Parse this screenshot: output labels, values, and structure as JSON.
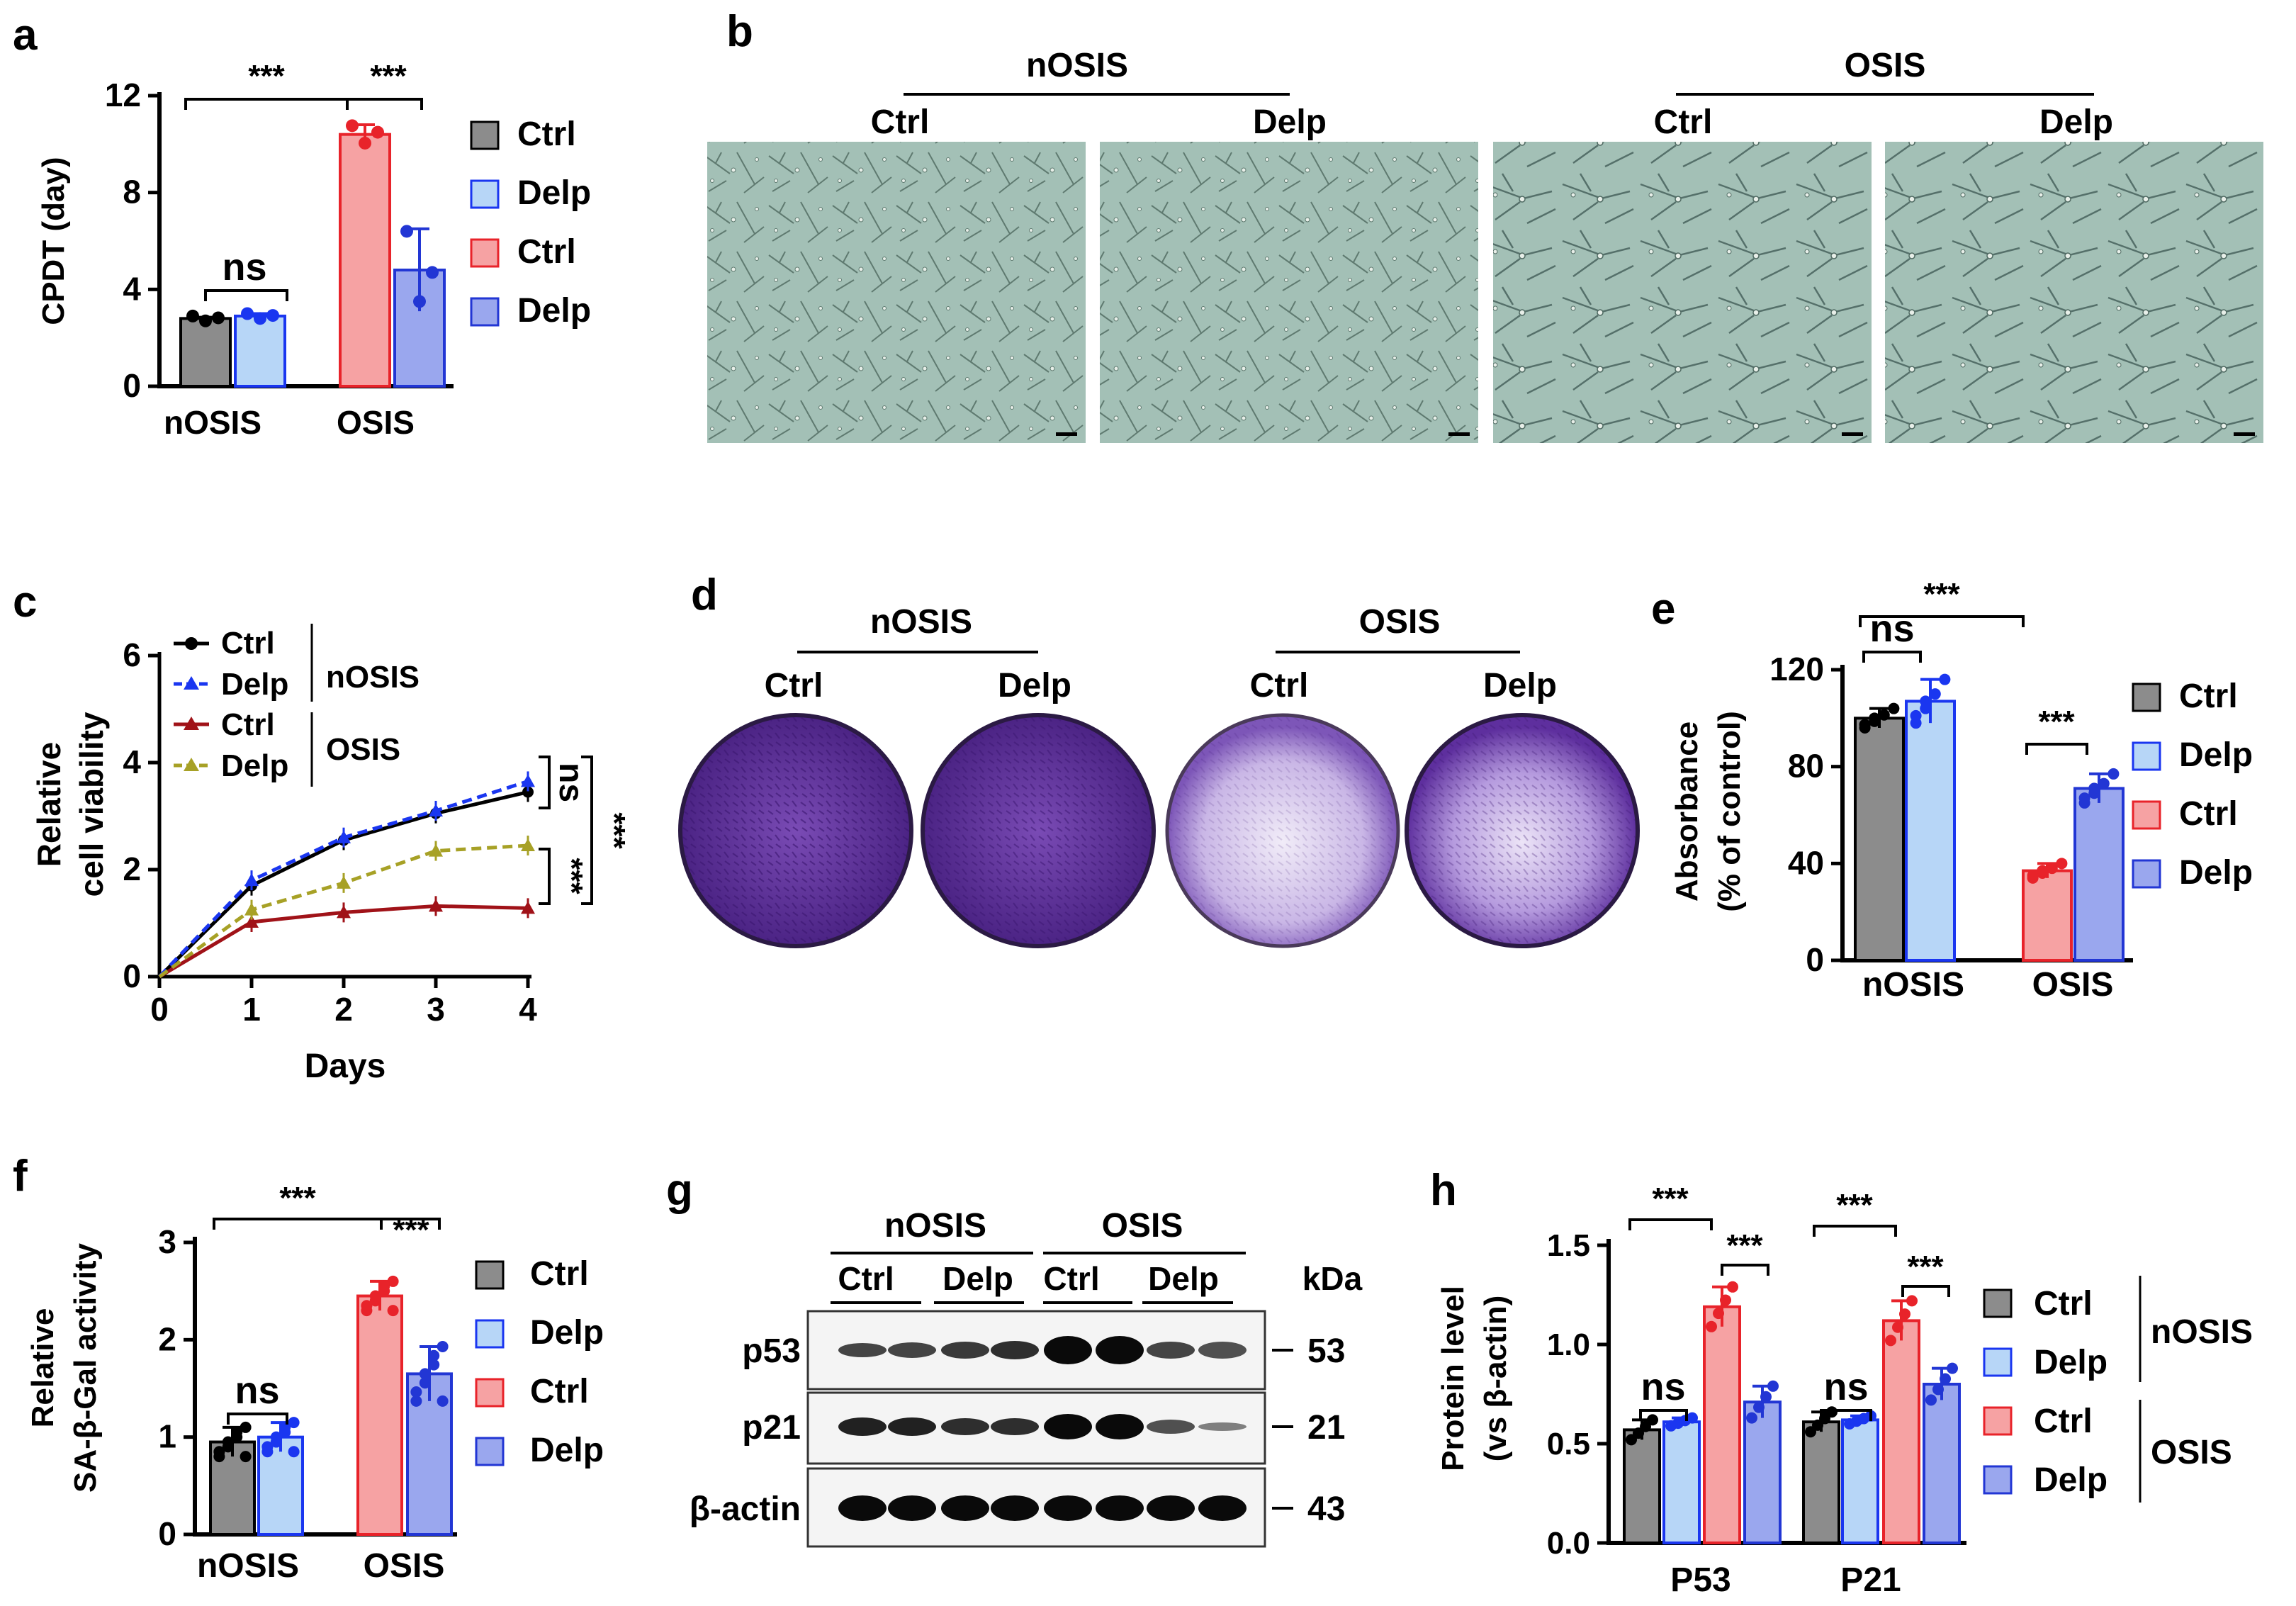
{
  "colors": {
    "ctrl_nosis": "#8c8c8c",
    "delp_nosis": "#b7d6f7",
    "ctrl_osis": "#f6a2a3",
    "delp_osis": "#9aa7ee",
    "delp_nosis_edge": "#1a36f0",
    "ctrl_osis_edge": "#e8232a",
    "delp_osis_edge": "#2236d4",
    "olive": "#a7a126",
    "darkred": "#a01218",
    "well_dark": "#5b2a95",
    "well_light": "#c7b2e4",
    "micro_bg": "#9fbdb3"
  },
  "panels": {
    "a": "a",
    "b": "b",
    "c": "c",
    "d": "d",
    "e": "e",
    "f": "f",
    "g": "g",
    "h": "h"
  },
  "legend_labels": {
    "ctrl": "Ctrl",
    "delp": "Delp"
  },
  "group_labels": {
    "nosis": "nOSIS",
    "osis": "OSIS"
  },
  "sig": {
    "ns": "ns",
    "three": "***"
  },
  "chart_data": [
    {
      "panel": "a",
      "type": "bar",
      "title": "",
      "ylabel": "CPDT (day)",
      "xlabel": "",
      "ylim": [
        0,
        12
      ],
      "yticks": [
        0,
        4,
        8,
        12
      ],
      "categories": [
        "nOSIS",
        "OSIS"
      ],
      "series": [
        {
          "name": "Ctrl (nOSIS)",
          "values": [
            2.8,
            null
          ],
          "error": [
            0.05,
            null
          ]
        },
        {
          "name": "Delp (nOSIS)",
          "values": [
            2.9,
            null
          ],
          "error": [
            0.1,
            null
          ]
        },
        {
          "name": "Ctrl (OSIS)",
          "values": [
            null,
            10.4
          ],
          "error": [
            null,
            0.4
          ]
        },
        {
          "name": "Delp (OSIS)",
          "values": [
            null,
            4.8
          ],
          "error": [
            null,
            1.7
          ]
        }
      ],
      "annotations": [
        "ns",
        "***",
        "***"
      ]
    },
    {
      "panel": "c",
      "type": "line",
      "ylabel": "Relative cell viability",
      "xlabel": "Days",
      "x": [
        0,
        1,
        2,
        3,
        4
      ],
      "xlim": [
        0,
        4
      ],
      "ylim": [
        0,
        6
      ],
      "yticks": [
        0,
        2,
        4,
        6
      ],
      "series": [
        {
          "name": "Ctrl",
          "group": "nOSIS",
          "values": [
            0,
            1.7,
            2.55,
            3.05,
            3.45
          ]
        },
        {
          "name": "Delp",
          "group": "nOSIS",
          "values": [
            0,
            1.8,
            2.6,
            3.1,
            3.65
          ]
        },
        {
          "name": "Ctrl",
          "group": "OSIS",
          "values": [
            0,
            1.02,
            1.2,
            1.32,
            1.28
          ]
        },
        {
          "name": "Delp",
          "group": "OSIS",
          "values": [
            0,
            1.25,
            1.75,
            2.35,
            2.45
          ]
        }
      ],
      "annotations": [
        "ns",
        "***",
        "***"
      ]
    },
    {
      "panel": "e",
      "type": "bar",
      "ylabel": "Absorbance (% of control)",
      "ylim": [
        0,
        120
      ],
      "yticks": [
        0,
        40,
        80,
        120
      ],
      "categories": [
        "nOSIS",
        "OSIS"
      ],
      "series": [
        {
          "name": "Ctrl (nOSIS)",
          "values": [
            100,
            null
          ]
        },
        {
          "name": "Delp (nOSIS)",
          "values": [
            107,
            null
          ]
        },
        {
          "name": "Ctrl (OSIS)",
          "values": [
            null,
            37
          ]
        },
        {
          "name": "Delp (OSIS)",
          "values": [
            null,
            71
          ]
        }
      ],
      "annotations": [
        "ns",
        "***",
        "***"
      ]
    },
    {
      "panel": "f",
      "type": "bar",
      "ylabel": "Relative SA-β-Gal activity",
      "ylim": [
        0,
        3
      ],
      "yticks": [
        0,
        1,
        2,
        3
      ],
      "categories": [
        "nOSIS",
        "OSIS"
      ],
      "series": [
        {
          "name": "Ctrl (nOSIS)",
          "values": [
            0.95,
            null
          ]
        },
        {
          "name": "Delp (nOSIS)",
          "values": [
            1.0,
            null
          ]
        },
        {
          "name": "Ctrl (OSIS)",
          "values": [
            null,
            2.45
          ]
        },
        {
          "name": "Delp (OSIS)",
          "values": [
            null,
            1.65
          ]
        }
      ],
      "annotations": [
        "ns",
        "***",
        "***"
      ]
    },
    {
      "panel": "h",
      "type": "bar",
      "ylabel": "Protein level (vs β-actin)",
      "ylim": [
        0,
        1.5
      ],
      "yticks": [
        0.0,
        0.5,
        1.0,
        1.5
      ],
      "yticklabels": [
        "0.0",
        "0.5",
        "1.0",
        "1.5"
      ],
      "categories": [
        "P53",
        "P21"
      ],
      "series": [
        {
          "name": "Ctrl (nOSIS)",
          "values": [
            0.57,
            0.61
          ]
        },
        {
          "name": "Delp (nOSIS)",
          "values": [
            0.61,
            0.62
          ]
        },
        {
          "name": "Ctrl (OSIS)",
          "values": [
            1.19,
            1.12
          ]
        },
        {
          "name": "Delp (OSIS)",
          "values": [
            0.71,
            0.8
          ]
        }
      ],
      "annotations": [
        "ns",
        "***",
        "***",
        "ns",
        "***",
        "***"
      ]
    }
  ],
  "panel_a": {
    "ylabel": "CPDT (day)",
    "yticks": [
      "0",
      "4",
      "8",
      "12"
    ],
    "xcats": [
      "nOSIS",
      "OSIS"
    ]
  },
  "panel_c": {
    "ylabel1": "Relative",
    "ylabel2": "cell viability",
    "xlabel": "Days",
    "xticks": [
      "0",
      "1",
      "2",
      "3",
      "4"
    ],
    "yticks": [
      "0",
      "2",
      "4",
      "6"
    ]
  },
  "panel_e": {
    "ylabel1": "Absorbance",
    "ylabel2": "(% of control)",
    "yticks": [
      "0",
      "40",
      "80",
      "120"
    ],
    "xcats": [
      "nOSIS",
      "OSIS"
    ]
  },
  "panel_f": {
    "ylabel1": "Relative",
    "ylabel2": "SA-β-Gal activity",
    "yticks": [
      "0",
      "1",
      "2",
      "3"
    ],
    "xcats": [
      "nOSIS",
      "OSIS"
    ]
  },
  "panel_h": {
    "ylabel1": "Protein level",
    "ylabel2": "(vs β-actin)",
    "yticks": [
      "0.0",
      "0.5",
      "1.0",
      "1.5"
    ],
    "xcats": [
      "P53",
      "P21"
    ]
  },
  "panel_g": {
    "kda": "kDa",
    "rows": [
      {
        "label": "p53",
        "kda": "53"
      },
      {
        "label": "p21",
        "kda": "21"
      },
      {
        "label": "β-actin",
        "kda": "43"
      }
    ]
  }
}
